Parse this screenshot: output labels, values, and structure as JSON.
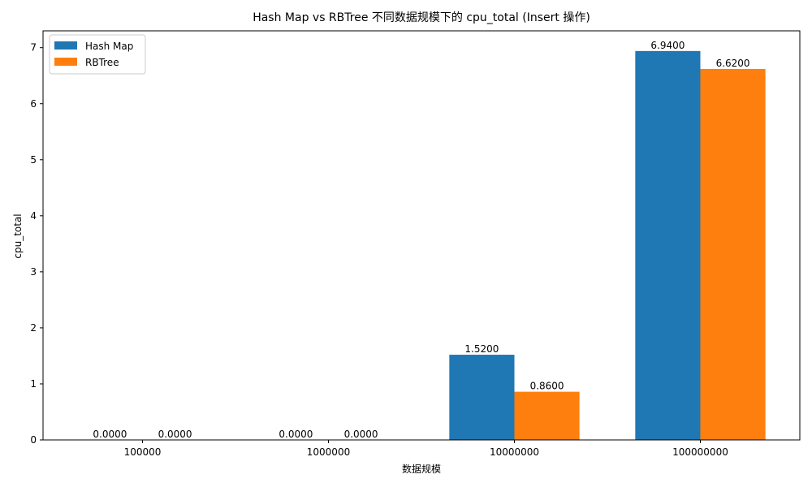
{
  "chart_data": {
    "type": "bar",
    "title": "Hash Map vs RBTree 不同数据规模下的 cpu_total (Insert 操作)",
    "xlabel": "数据规模",
    "ylabel": "cpu_total",
    "categories": [
      "100000",
      "1000000",
      "10000000",
      "100000000"
    ],
    "series": [
      {
        "name": "Hash Map",
        "values": [
          0.0,
          0.0,
          1.52,
          6.94
        ],
        "labels": [
          "0.0000",
          "0.0000",
          "1.5200",
          "6.9400"
        ],
        "color": "#1f77b4"
      },
      {
        "name": "RBTree",
        "values": [
          0.0,
          0.0,
          0.86,
          6.62
        ],
        "labels": [
          "0.0000",
          "0.0000",
          "0.8600",
          "6.6200"
        ],
        "color": "#ff7f0e"
      }
    ],
    "ylim": [
      0,
      7.3
    ],
    "yticks": [
      "0",
      "1",
      "2",
      "3",
      "4",
      "5",
      "6",
      "7"
    ],
    "legend": "top-left",
    "grid": false
  }
}
